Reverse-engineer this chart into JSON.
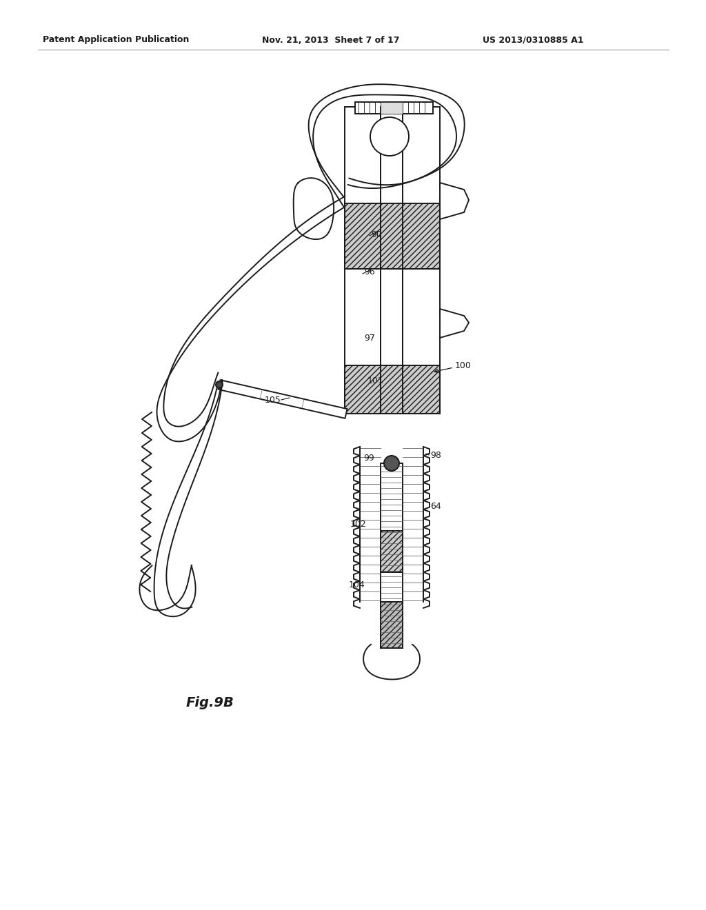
{
  "background_color": "#ffffff",
  "header_left": "Patent Application Publication",
  "header_center": "Nov. 21, 2013  Sheet 7 of 17",
  "header_right": "US 2013/0310885 A1",
  "figure_label": "Fig.9B",
  "line_color": "#1a1a1a",
  "text_color": "#1a1a1a",
  "header_fontsize": 9,
  "label_fontsize": 9,
  "fig_label_fontsize": 14
}
